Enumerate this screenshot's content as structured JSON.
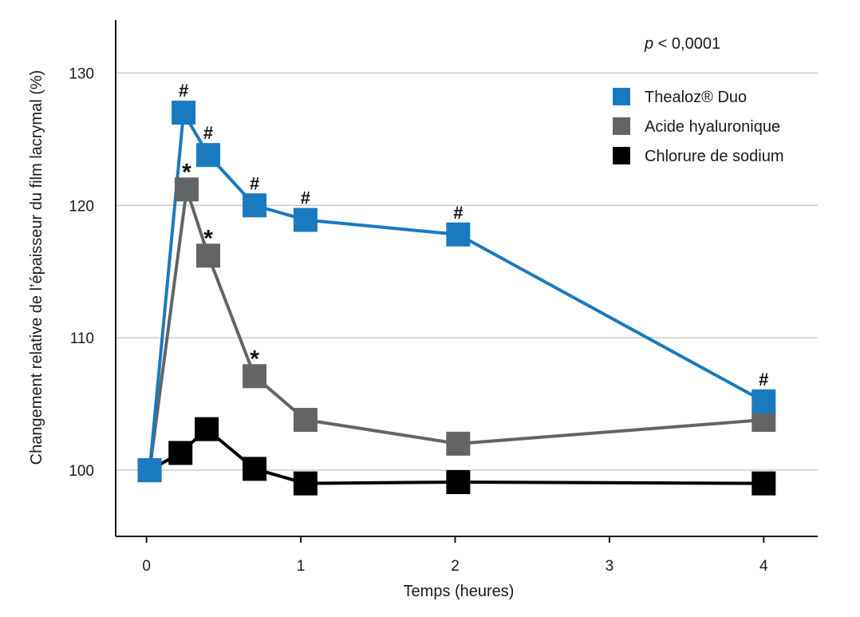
{
  "chart_data": {
    "type": "line",
    "xlabel": "Temps (heures)",
    "ylabel": "Changement relative de l’épaisseur du film lacrymal (%)",
    "xlim": [
      -0.2,
      4.35
    ],
    "ylim": [
      95,
      134
    ],
    "x_ticks": [
      0,
      1,
      2,
      3,
      4
    ],
    "y_ticks": [
      100,
      110,
      120,
      130
    ],
    "grid": "horizontal",
    "legend_position": "top-right",
    "annotation": {
      "italic": "p",
      "rest": " < 0,0001"
    },
    "series": [
      {
        "name": "Thealoz® Duo",
        "color": "#1a7ac0",
        "x": [
          0.02,
          0.24,
          0.4,
          0.7,
          1.03,
          2.02,
          4.0
        ],
        "y": [
          100,
          127,
          123.8,
          120,
          118.9,
          117.8,
          105.2
        ],
        "markers": [
          "",
          "#",
          "#",
          "#",
          "#",
          "#",
          "#"
        ]
      },
      {
        "name": "Acide hyaluronique",
        "color": "#626466",
        "x": [
          0.02,
          0.26,
          0.4,
          0.7,
          1.03,
          2.02,
          4.0
        ],
        "y": [
          100,
          121.2,
          116.2,
          107.1,
          103.8,
          102,
          103.8
        ],
        "markers": [
          "",
          "*",
          "*",
          "*",
          "",
          "",
          ""
        ]
      },
      {
        "name": "Chlorure de sodium",
        "color": "#000000",
        "x": [
          0.02,
          0.22,
          0.39,
          0.7,
          1.03,
          2.02,
          4.0
        ],
        "y": [
          100,
          101.3,
          103.1,
          100.1,
          99,
          99.1,
          99
        ]
      }
    ]
  }
}
